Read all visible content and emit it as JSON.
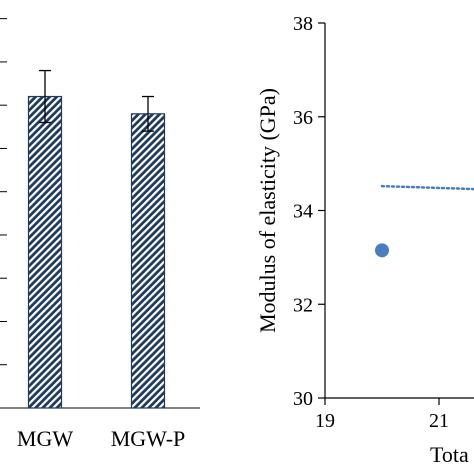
{
  "colors": {
    "bar_fill": "#1f3a5a",
    "bar_hatch_light": "#ffffff",
    "scatter_point": "#4a7cc1",
    "trend_line": "#4a7cc1",
    "axis": "#000000"
  },
  "chart_data": [
    {
      "type": "bar",
      "title": "",
      "xlabel": "",
      "ylabel": "",
      "categories": [
        "MGW",
        "MGW-P"
      ],
      "values": [
        34.6,
        34.2
      ],
      "error": [
        0.6,
        0.4
      ],
      "ylim": [
        27.4,
        36.6
      ],
      "y_ticks": [
        27.4,
        28.4,
        29.4,
        30.4,
        31.4,
        32.4,
        33.4,
        34.4,
        35.4,
        36.4
      ],
      "hatch": "diagonal",
      "grid": false
    },
    {
      "type": "scatter",
      "title": "",
      "xlabel": "Tota",
      "ylabel": "Modulus of elasticity (GPa)",
      "xlim": [
        19,
        23.6
      ],
      "ylim": [
        30,
        38
      ],
      "x_ticks": [
        19,
        21
      ],
      "y_ticks": [
        30,
        32,
        34,
        36,
        38
      ],
      "points": [
        {
          "x": 20.0,
          "y": 33.15
        }
      ],
      "trendline": {
        "x": [
          20.0,
          23.6
        ],
        "y": [
          34.52,
          34.38
        ],
        "style": "dotted"
      },
      "grid": false
    }
  ]
}
